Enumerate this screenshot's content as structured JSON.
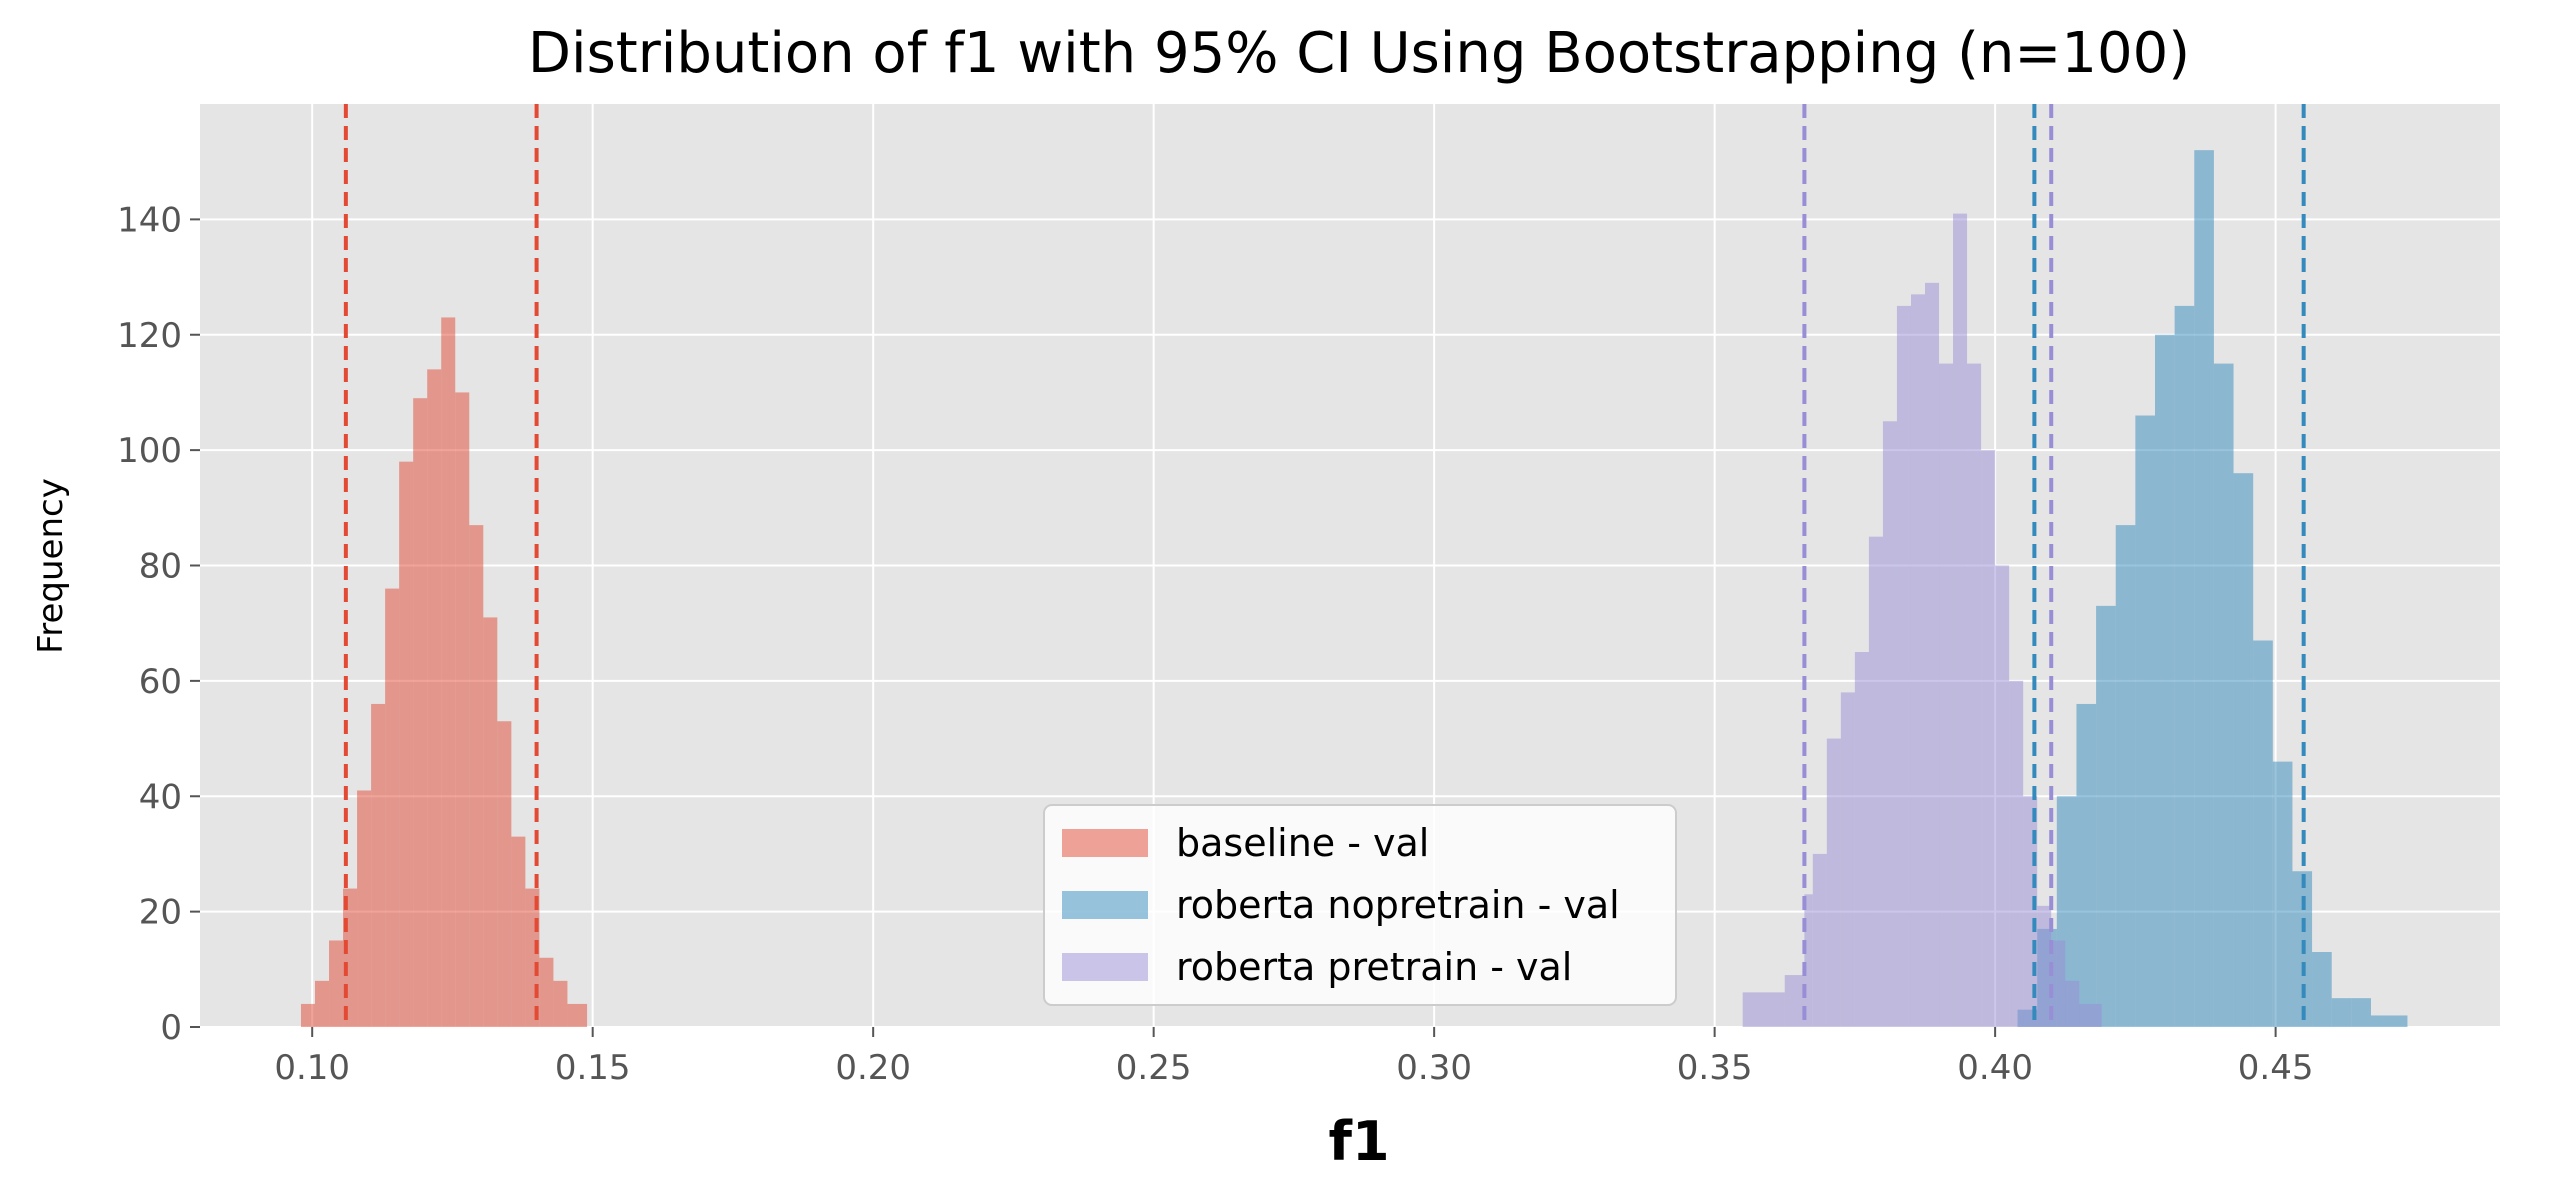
{
  "chart_data": {
    "type": "histogram",
    "title": "Distribution of f1 with 95% CI Using Bootstrapping (n=100)",
    "xlabel": "f1",
    "ylabel": "Frequency",
    "xlim": [
      0.08,
      0.49
    ],
    "ylim": [
      0,
      160
    ],
    "xticks": [
      0.1,
      0.15,
      0.2,
      0.25,
      0.3,
      0.35,
      0.4,
      0.45
    ],
    "xtick_labels": [
      "0.10",
      "0.15",
      "0.20",
      "0.25",
      "0.30",
      "0.35",
      "0.40",
      "0.45"
    ],
    "yticks": [
      0,
      20,
      40,
      60,
      80,
      100,
      120,
      140
    ],
    "ytick_labels": [
      "0",
      "20",
      "40",
      "60",
      "80",
      "100",
      "120",
      "140"
    ],
    "grid": true,
    "legend_position": "bottom-center",
    "series": [
      {
        "name": "baseline  - val",
        "color": "#E24A33",
        "ci": [
          0.106,
          0.14
        ],
        "bin_edges": [
          0.098,
          0.1005,
          0.103,
          0.1055,
          0.108,
          0.1105,
          0.113,
          0.1155,
          0.118,
          0.1205,
          0.123,
          0.1255,
          0.128,
          0.1305,
          0.133,
          0.1355,
          0.138,
          0.1405,
          0.143,
          0.1455,
          0.149
        ],
        "counts": [
          4,
          8,
          15,
          24,
          41,
          56,
          76,
          98,
          109,
          114,
          123,
          110,
          87,
          71,
          53,
          33,
          24,
          12,
          8,
          4
        ]
      },
      {
        "name": "roberta nopretrain - val",
        "color": "#348ABD",
        "ci": [
          0.407,
          0.455
        ],
        "bin_edges": [
          0.404,
          0.4075,
          0.411,
          0.4145,
          0.418,
          0.4215,
          0.425,
          0.4285,
          0.432,
          0.4355,
          0.439,
          0.4425,
          0.446,
          0.4495,
          0.453,
          0.4565,
          0.46,
          0.4635,
          0.467,
          0.4735
        ],
        "counts": [
          3,
          17,
          40,
          56,
          73,
          87,
          106,
          120,
          125,
          152,
          115,
          96,
          67,
          46,
          27,
          13,
          5,
          5,
          2
        ]
      },
      {
        "name": "roberta pretrain - val",
        "color": "#988ED5",
        "ci": [
          0.366,
          0.41
        ],
        "bin_edges": [
          0.355,
          0.3625,
          0.366,
          0.3675,
          0.37,
          0.3725,
          0.375,
          0.3775,
          0.38,
          0.3825,
          0.385,
          0.3875,
          0.39,
          0.3925,
          0.395,
          0.3975,
          0.4,
          0.4025,
          0.405,
          0.4075,
          0.41,
          0.4125,
          0.415,
          0.419
        ],
        "counts": [
          6,
          9,
          23,
          30,
          50,
          58,
          65,
          85,
          105,
          125,
          127,
          129,
          115,
          141,
          115,
          100,
          80,
          60,
          40,
          21,
          15,
          8,
          4
        ]
      }
    ]
  }
}
